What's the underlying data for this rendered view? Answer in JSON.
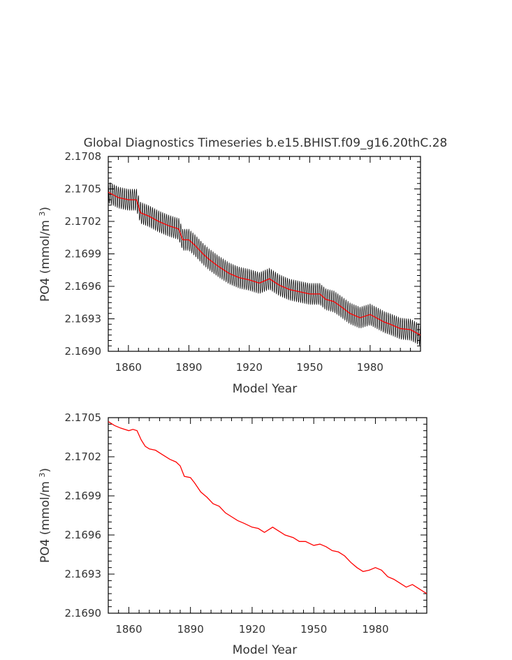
{
  "title": "Global Diagnostics Timeseries b.e15.BHIST.f09_g16.20thC.28",
  "colors": {
    "monthly": "#000000",
    "annual": "#ff0000",
    "text": "#333333"
  },
  "chart_data": [
    {
      "type": "line",
      "title": "Global Diagnostics Timeseries b.e15.BHIST.f09_g16.20thC.28",
      "xlabel": "Model Year",
      "ylabel": "PO4 (mmol/m3)",
      "xlim": [
        1850,
        2005
      ],
      "ylim": [
        2.169,
        2.1708
      ],
      "xticks": [
        1860,
        1890,
        1920,
        1950,
        1980
      ],
      "xtick_labels": [
        "1860",
        "1890",
        "1920",
        "1950",
        "1980"
      ],
      "yticks": [
        2.169,
        2.1693,
        2.1696,
        2.1699,
        2.1702,
        2.1705,
        2.1708
      ],
      "ytick_labels": [
        "2.1690",
        "2.1693",
        "2.1696",
        "2.1699",
        "2.1702",
        "2.1705",
        "2.1708"
      ],
      "grid": false,
      "series": [
        {
          "color": "#000000",
          "style": "monthly",
          "amplitude": 0.0001,
          "x": [
            1850,
            1855,
            1860,
            1864,
            1866,
            1870,
            1875,
            1880,
            1885,
            1887,
            1890,
            1893,
            1897,
            1900,
            1905,
            1910,
            1915,
            1920,
            1925,
            1930,
            1935,
            1940,
            1945,
            1950,
            1955,
            1958,
            1962,
            1965,
            1970,
            1975,
            1980,
            1983,
            1987,
            1990,
            1995,
            2000,
            2005
          ],
          "y": [
            2.17047,
            2.17042,
            2.1704,
            2.1704,
            2.17028,
            2.17025,
            2.1702,
            2.17016,
            2.17013,
            2.17003,
            2.17003,
            2.16998,
            2.1699,
            2.16985,
            2.16978,
            2.16972,
            2.16968,
            2.16966,
            2.16963,
            2.16967,
            2.16961,
            2.16957,
            2.16955,
            2.16953,
            2.16953,
            2.16948,
            2.16946,
            2.16942,
            2.16935,
            2.16931,
            2.16934,
            2.16931,
            2.16927,
            2.16925,
            2.16921,
            2.1692,
            2.16915
          ]
        },
        {
          "color": "#ff0000",
          "style": "annual",
          "x": [
            1850,
            1855,
            1860,
            1864,
            1866,
            1870,
            1875,
            1880,
            1885,
            1887,
            1890,
            1893,
            1897,
            1900,
            1905,
            1910,
            1915,
            1920,
            1925,
            1930,
            1935,
            1940,
            1945,
            1950,
            1955,
            1958,
            1962,
            1965,
            1970,
            1975,
            1980,
            1983,
            1987,
            1990,
            1995,
            2000,
            2005
          ],
          "y": [
            2.17047,
            2.17042,
            2.1704,
            2.1704,
            2.17028,
            2.17025,
            2.1702,
            2.17016,
            2.17013,
            2.17003,
            2.17003,
            2.16998,
            2.1699,
            2.16985,
            2.16978,
            2.16972,
            2.16968,
            2.16966,
            2.16963,
            2.16967,
            2.16961,
            2.16957,
            2.16955,
            2.16953,
            2.16953,
            2.16948,
            2.16946,
            2.16942,
            2.16935,
            2.16931,
            2.16934,
            2.16931,
            2.16927,
            2.16925,
            2.16921,
            2.1692,
            2.16915
          ]
        }
      ]
    },
    {
      "type": "line",
      "title": "",
      "xlabel": "Model Year",
      "ylabel": "PO4 (mmol/m3)",
      "xlim": [
        1850,
        2005
      ],
      "ylim": [
        2.169,
        2.1705
      ],
      "xticks": [
        1860,
        1890,
        1920,
        1950,
        1980
      ],
      "xtick_labels": [
        "1860",
        "1890",
        "1920",
        "1950",
        "1980"
      ],
      "yticks": [
        2.169,
        2.1693,
        2.1696,
        2.1699,
        2.1702,
        2.1705
      ],
      "ytick_labels": [
        "2.1690",
        "2.1693",
        "2.1696",
        "2.1699",
        "2.1702",
        "2.1705"
      ],
      "grid": false,
      "series": [
        {
          "color": "#ff0000",
          "style": "annual",
          "x": [
            1850,
            1853,
            1856,
            1860,
            1862,
            1864,
            1866,
            1868,
            1870,
            1873,
            1876,
            1880,
            1883,
            1885,
            1887,
            1890,
            1892,
            1895,
            1898,
            1901,
            1904,
            1907,
            1910,
            1913,
            1916,
            1920,
            1923,
            1926,
            1930,
            1933,
            1936,
            1940,
            1943,
            1946,
            1950,
            1953,
            1956,
            1959,
            1962,
            1965,
            1968,
            1971,
            1974,
            1977,
            1980,
            1983,
            1986,
            1989,
            1992,
            1995,
            1998,
            2001,
            2005
          ],
          "y": [
            2.17047,
            2.17044,
            2.17042,
            2.1704,
            2.17041,
            2.1704,
            2.17033,
            2.17028,
            2.17026,
            2.17025,
            2.17022,
            2.17018,
            2.17016,
            2.17013,
            2.17005,
            2.17004,
            2.17,
            2.16993,
            2.16989,
            2.16984,
            2.16982,
            2.16977,
            2.16974,
            2.16971,
            2.16969,
            2.16966,
            2.16965,
            2.16962,
            2.16966,
            2.16963,
            2.1696,
            2.16958,
            2.16955,
            2.16955,
            2.16952,
            2.16953,
            2.16951,
            2.16948,
            2.16947,
            2.16944,
            2.16939,
            2.16935,
            2.16932,
            2.16933,
            2.16935,
            2.16933,
            2.16928,
            2.16926,
            2.16923,
            2.1692,
            2.16922,
            2.16919,
            2.16915
          ]
        }
      ]
    }
  ]
}
